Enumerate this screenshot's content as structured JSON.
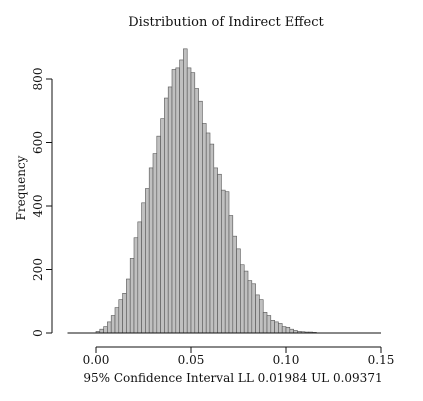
{
  "chart_data": {
    "type": "bar",
    "title": "Distribution of Indirect Effect",
    "xlabel": "95% Confidence Interval LL 0.01984 UL 0.09371",
    "ylabel": "Frequency",
    "xlim": [
      -0.015,
      0.15
    ],
    "ylim": [
      0,
      900
    ],
    "x_ticks": [
      0.0,
      0.05,
      0.1,
      0.15
    ],
    "x_tick_labels": [
      "0.00",
      "0.05",
      "0.10",
      "0.15"
    ],
    "y_ticks": [
      0,
      200,
      400,
      600,
      800
    ],
    "y_tick_labels": [
      "0",
      "200",
      "400",
      "600",
      "800"
    ],
    "bin_width": 0.002,
    "bins_start": 0.0,
    "values": [
      5,
      12,
      20,
      35,
      55,
      80,
      105,
      125,
      170,
      235,
      300,
      350,
      410,
      455,
      520,
      565,
      620,
      675,
      740,
      775,
      830,
      835,
      860,
      895,
      835,
      820,
      770,
      730,
      660,
      630,
      595,
      520,
      500,
      450,
      445,
      370,
      305,
      265,
      215,
      195,
      165,
      155,
      120,
      105,
      65,
      55,
      40,
      35,
      30,
      20,
      18,
      12,
      8,
      5,
      4,
      3,
      3,
      2
    ],
    "grid": false,
    "bar_color": "#c0c0c0"
  }
}
